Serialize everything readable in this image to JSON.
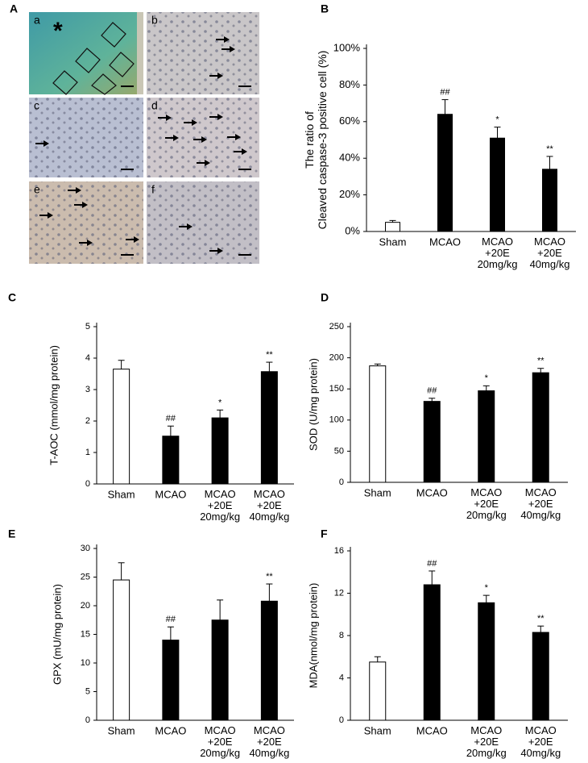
{
  "micrographs": {
    "panel": "A",
    "marker": "*",
    "images": [
      "a",
      "b",
      "c",
      "d",
      "e",
      "f"
    ]
  },
  "chart_data": [
    {
      "type": "bar",
      "panel": "B",
      "ylabel": "The ratio of\nCleaved caspase-3 positive cell (%)",
      "categories": [
        "Sham",
        "MCAO",
        "MCAO\n+20E\n20mg/kg",
        "MCAO\n+20E\n40mg/kg"
      ],
      "values": [
        5,
        64,
        51,
        34
      ],
      "errors": [
        1,
        8,
        6,
        7
      ],
      "annotations": [
        null,
        "##",
        "*",
        "**"
      ],
      "colors": [
        "#ffffff",
        "#000000",
        "#000000",
        "#000000"
      ],
      "ylim": [
        0,
        100
      ],
      "yticks": [
        {
          "value": 0,
          "label": "0%"
        },
        {
          "value": 20,
          "label": "20%"
        },
        {
          "value": 40,
          "label": "40%"
        },
        {
          "value": 60,
          "label": "60%"
        },
        {
          "value": 80,
          "label": "80%"
        },
        {
          "value": 100,
          "label": "100%"
        }
      ]
    },
    {
      "type": "bar",
      "panel": "C",
      "ylabel": "T-AOC (mmol/mg protein)",
      "categories": [
        "Sham",
        "MCAO",
        "MCAO\n+20E\n20mg/kg",
        "MCAO\n+20E\n40mg/kg"
      ],
      "values": [
        3.65,
        1.52,
        2.1,
        3.57
      ],
      "errors": [
        0.28,
        0.32,
        0.25,
        0.3
      ],
      "annotations": [
        null,
        "##",
        "*",
        "**"
      ],
      "colors": [
        "#ffffff",
        "#000000",
        "#000000",
        "#000000"
      ],
      "ylim": [
        0,
        5
      ],
      "yticks": [
        0,
        1,
        2,
        3,
        4,
        5
      ]
    },
    {
      "type": "bar",
      "panel": "D",
      "ylabel": "SOD (U/mg protein)",
      "categories": [
        "Sham",
        "MCAO",
        "MCAO\n+20E\n20mg/kg",
        "MCAO\n+20E\n40mg/kg"
      ],
      "values": [
        187,
        130,
        147,
        176
      ],
      "errors": [
        3,
        5,
        8,
        7
      ],
      "annotations": [
        null,
        "##",
        "*",
        "**"
      ],
      "colors": [
        "#ffffff",
        "#000000",
        "#000000",
        "#000000"
      ],
      "ylim": [
        0,
        250
      ],
      "yticks": [
        0,
        50,
        100,
        150,
        200,
        250
      ]
    },
    {
      "type": "bar",
      "panel": "E",
      "ylabel": "GPX (mU/mg protein)",
      "categories": [
        "Sham",
        "MCAO",
        "MCAO\n+20E\n20mg/kg",
        "MCAO\n+20E\n40mg/kg"
      ],
      "values": [
        24.5,
        14,
        17.5,
        20.8
      ],
      "errors": [
        3,
        2.3,
        3.5,
        3
      ],
      "annotations": [
        null,
        "##",
        null,
        "**"
      ],
      "colors": [
        "#ffffff",
        "#000000",
        "#000000",
        "#000000"
      ],
      "ylim": [
        0,
        30
      ],
      "yticks": [
        0,
        5,
        10,
        15,
        20,
        25,
        30
      ]
    },
    {
      "type": "bar",
      "panel": "F",
      "ylabel": "MDA(nmol/mg protein)",
      "categories": [
        "Sham",
        "MCAO",
        "MCAO\n+20E\n20mg/kg",
        "MCAO\n+20E\n40mg/kg"
      ],
      "values": [
        5.5,
        12.8,
        11.1,
        8.3
      ],
      "errors": [
        0.5,
        1.3,
        0.7,
        0.6
      ],
      "annotations": [
        null,
        "##",
        "*",
        "**"
      ],
      "colors": [
        "#ffffff",
        "#000000",
        "#000000",
        "#000000"
      ],
      "ylim": [
        0,
        16
      ],
      "yticks": [
        0,
        4,
        8,
        12,
        16
      ]
    }
  ]
}
